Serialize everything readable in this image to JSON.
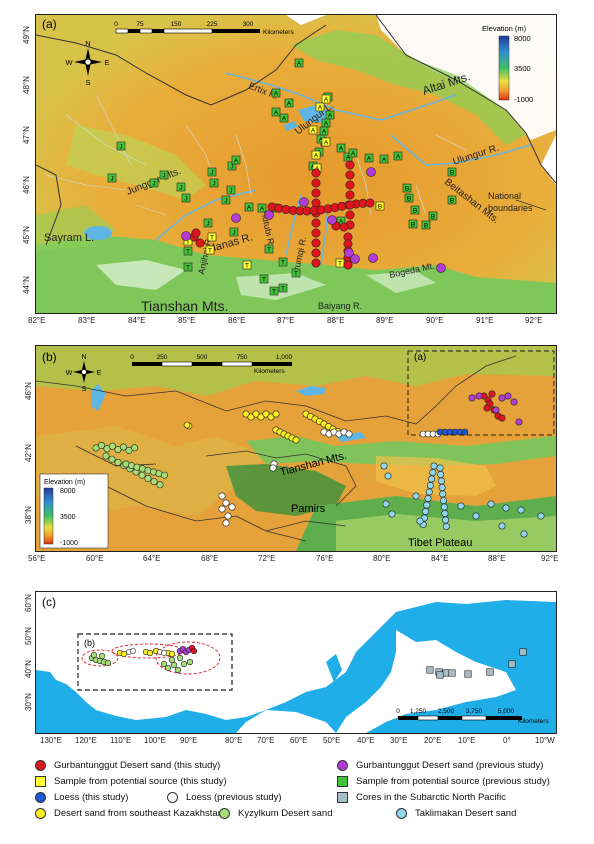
{
  "panel_a": {
    "label": "(a)",
    "scale_ticks": [
      "0",
      "75",
      "150",
      "225",
      "300"
    ],
    "scale_unit": "Kilometers",
    "north": {
      "n": "N",
      "s": "S",
      "e": "E",
      "w": "W"
    },
    "elevation": {
      "title": "Elevation (m)",
      "max": "8000",
      "mid": "3500",
      "min": "-1000"
    },
    "place_labels": {
      "altai": "Altai Mts.",
      "ertix": "Ertix R.",
      "ulungur_lake": "Ulungur L.",
      "ulungur_r": "Ulungur R.",
      "junggar": "Junggar Mts.",
      "beitashan": "Beitashan Mts.",
      "sayram": "Sayram L.",
      "manas": "Manas R.",
      "hutubi": "Hutubi R.",
      "urumqi": "Urumqi R.",
      "anjihai": "Anjihai R.",
      "tianshan": "Tianshan Mts.",
      "bogeda": "Bogeda Mt.",
      "baiyang": "Baiyang R.",
      "national": "National",
      "boundaries": "boundaries"
    },
    "x_ticks": [
      "82°E",
      "83°E",
      "84°E",
      "85°E",
      "86°E",
      "87°E",
      "88°E",
      "89°E",
      "90°E",
      "91°E",
      "92°E"
    ],
    "y_ticks": [
      "49°N",
      "48°N",
      "47°N",
      "46°N",
      "45°N",
      "44°N"
    ],
    "marker_letters": {
      "altai_source": "A",
      "junggar_source": "J",
      "beitashan_source": "B",
      "tianshan_source": "T"
    }
  },
  "panel_b": {
    "label": "(b)",
    "inset_label": "(a)",
    "scale_ticks": [
      "0",
      "250",
      "500",
      "750",
      "1,000"
    ],
    "scale_unit": "Kilometers",
    "north": {
      "n": "N",
      "s": "S",
      "e": "E",
      "w": "W"
    },
    "elevation": {
      "title": "Elevation (m)",
      "max": "8000",
      "mid": "3500",
      "min": "-1000"
    },
    "place_labels": {
      "tianshan": "Tianshan Mts.",
      "pamirs": "Pamirs",
      "tibet": "Tibet Plateau"
    },
    "x_ticks": [
      "56°E",
      "60°E",
      "64°E",
      "68°E",
      "72°E",
      "76°E",
      "80°E",
      "84°E",
      "88°E",
      "92°E"
    ],
    "y_ticks": [
      "46°N",
      "42°N",
      "38°N"
    ]
  },
  "panel_c": {
    "label": "(c)",
    "inset_label": "(b)",
    "scale_ticks": [
      "0",
      "1,250",
      "2,500",
      "3,750",
      "5,000"
    ],
    "scale_unit": "Kilometers",
    "x_ticks": [
      "130°E",
      "120°E",
      "110°E",
      "100°E",
      "90°E",
      "80°E",
      "70°E",
      "60°E",
      "50°E",
      "40°E",
      "30°E",
      "20°E",
      "10°E",
      "0°",
      "10°W"
    ],
    "y_ticks": [
      "60°N",
      "50°N",
      "40°N",
      "30°N"
    ]
  },
  "legend": [
    {
      "label": "Gurbantunggut Desert sand (this study)",
      "shape": "circle",
      "color": "#e0141c"
    },
    {
      "label": "Gurbantunggut Desert sand (previous study)",
      "shape": "circle",
      "color": "#b23cd6"
    },
    {
      "label": "Sample from potential source (this study)",
      "shape": "square",
      "color": "#ffff33"
    },
    {
      "label": "Sample from potential source (previous study)",
      "shape": "square",
      "color": "#44c23a"
    },
    {
      "label": "Loess (this study)",
      "shape": "circle",
      "color": "#1d58d8"
    },
    {
      "label": "Loess (previous study)",
      "shape": "circle",
      "color": "#ffffff"
    },
    {
      "label": "Cores in the Subarctic North Pacific",
      "shape": "square",
      "color": "#a7bcc4"
    },
    {
      "label": "Desert sand from southeast Kazakhstan",
      "shape": "circle",
      "color": "#ffee22"
    },
    {
      "label": "Kyzylkum Desert sand",
      "shape": "circle",
      "color": "#a6dd78"
    },
    {
      "label": "Taklimakan Desert sand",
      "shape": "circle",
      "color": "#8fd6ee"
    }
  ],
  "colors": {
    "ocean": "#1faee8",
    "lowland": "#e7a437",
    "upland": "#8ccf57",
    "water": "#5fb6e4"
  }
}
